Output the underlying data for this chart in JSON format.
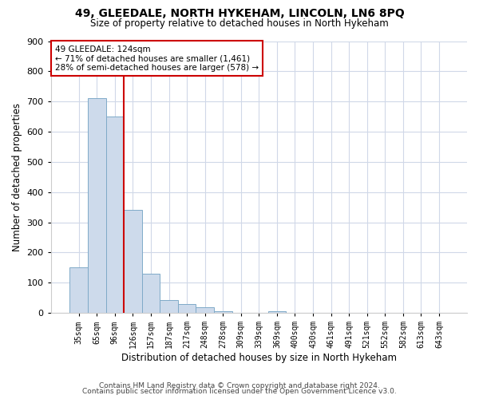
{
  "title": "49, GLEEDALE, NORTH HYKEHAM, LINCOLN, LN6 8PQ",
  "subtitle": "Size of property relative to detached houses in North Hykeham",
  "xlabel": "Distribution of detached houses by size in North Hykeham",
  "ylabel": "Number of detached properties",
  "footer_line1": "Contains HM Land Registry data © Crown copyright and database right 2024.",
  "footer_line2": "Contains public sector information licensed under the Open Government Licence v3.0.",
  "bin_labels": [
    "35sqm",
    "65sqm",
    "96sqm",
    "126sqm",
    "157sqm",
    "187sqm",
    "217sqm",
    "248sqm",
    "278sqm",
    "309sqm",
    "339sqm",
    "369sqm",
    "400sqm",
    "430sqm",
    "461sqm",
    "491sqm",
    "521sqm",
    "552sqm",
    "582sqm",
    "613sqm",
    "643sqm"
  ],
  "bar_values": [
    150,
    710,
    650,
    340,
    130,
    42,
    30,
    18,
    5,
    0,
    0,
    5,
    0,
    0,
    0,
    0,
    0,
    0,
    0,
    0,
    0
  ],
  "bar_color": "#cddaeb",
  "bar_edge_color": "#7faac8",
  "vline_color": "#cc0000",
  "vline_bin_index": 3,
  "ylim_max": 900,
  "yticks": [
    0,
    100,
    200,
    300,
    400,
    500,
    600,
    700,
    800,
    900
  ],
  "annotation_line1": "49 GLEEDALE: 124sqm",
  "annotation_line2": "← 71% of detached houses are smaller (1,461)",
  "annotation_line3": "28% of semi-detached houses are larger (578) →",
  "annotation_box_facecolor": "#ffffff",
  "annotation_box_edgecolor": "#cc0000",
  "bg_color": "#ffffff",
  "plot_bg_color": "#ffffff",
  "grid_color": "#d0d8e8"
}
